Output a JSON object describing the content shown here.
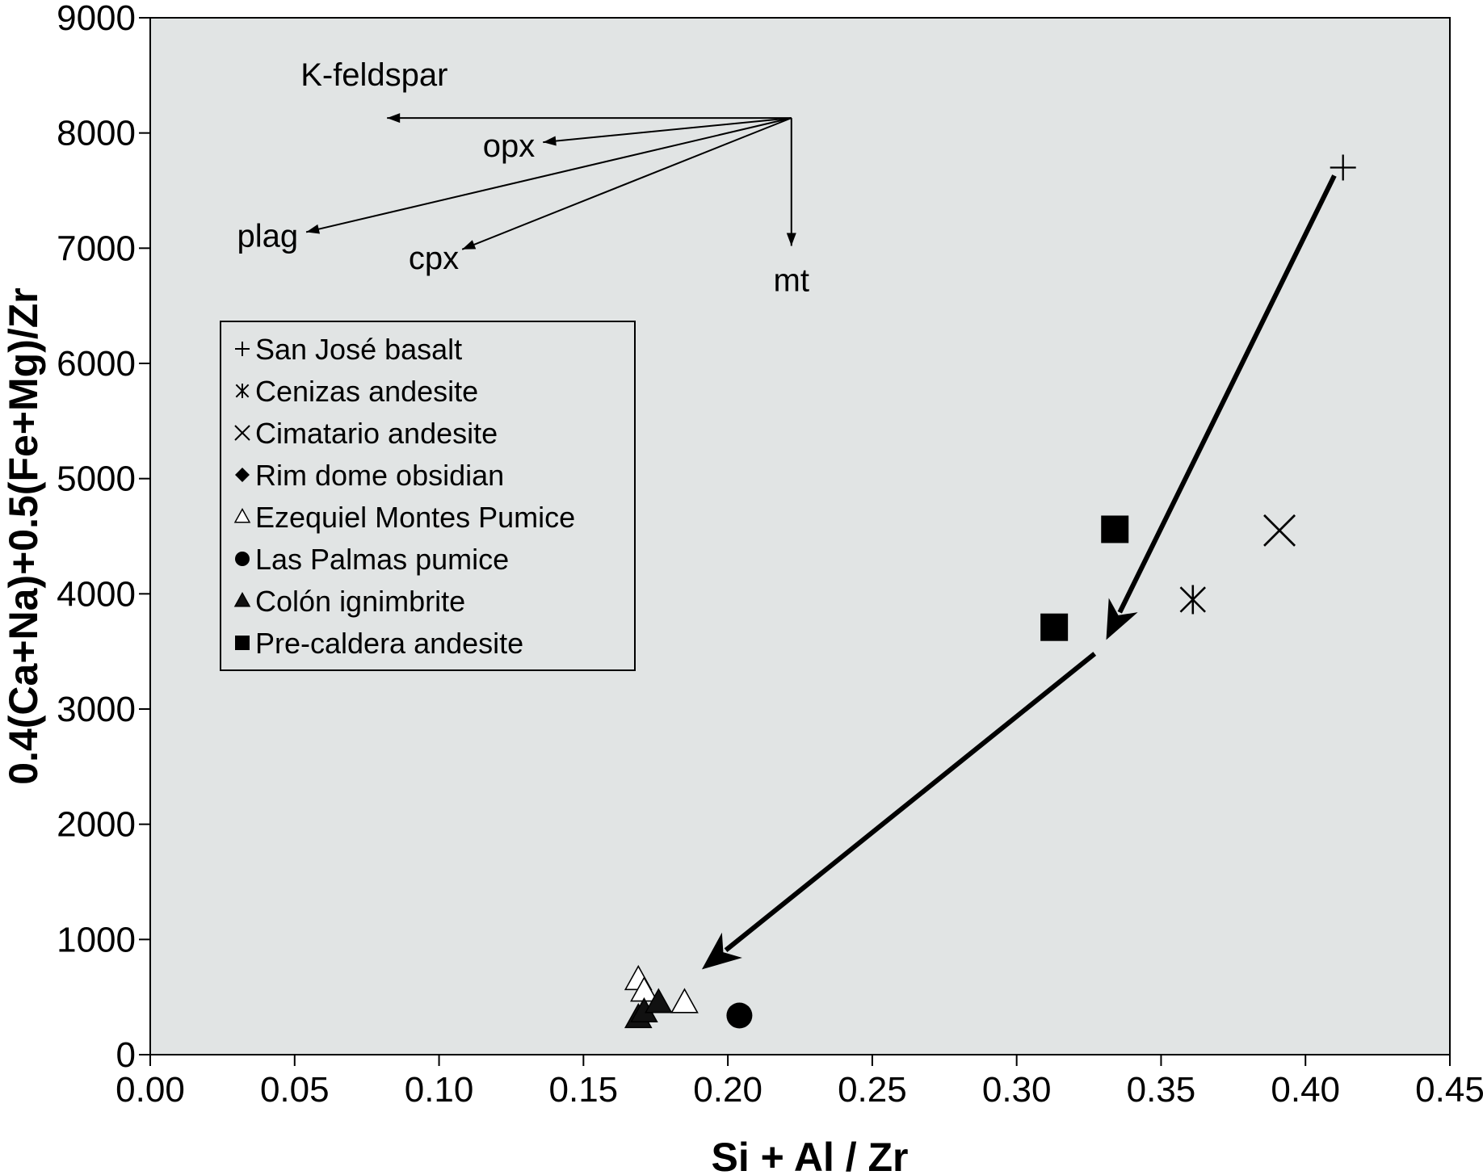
{
  "chart_data": {
    "type": "scatter",
    "xlabel": "Si + Al / Zr",
    "ylabel": "0.4(Ca+Na)+0.5(Fe+Mg)/Zr",
    "xlim": [
      0,
      0.45
    ],
    "ylim": [
      0,
      9000
    ],
    "xticks": [
      "0.00",
      "0.05",
      "0.10",
      "0.15",
      "0.20",
      "0.25",
      "0.30",
      "0.35",
      "0.40",
      "0.45"
    ],
    "yticks": [
      "0",
      "1000",
      "2000",
      "3000",
      "4000",
      "5000",
      "6000",
      "7000",
      "8000",
      "9000"
    ],
    "grid": false,
    "plot_background": "#e1e4e4",
    "legend_position": "upper-left",
    "series": [
      {
        "name": "San José basalt",
        "marker": "plus",
        "points": [
          [
            0.413,
            7700
          ]
        ]
      },
      {
        "name": "Cenizas andesite",
        "marker": "asterisk",
        "points": [
          [
            0.361,
            3950
          ]
        ]
      },
      {
        "name": "Cimatario andesite",
        "marker": "cross",
        "points": [
          [
            0.391,
            4550
          ]
        ]
      },
      {
        "name": "Rim dome obsidian",
        "marker": "diamond",
        "points": []
      },
      {
        "name": "Ezequiel Montes Pumice",
        "marker": "triangle-open",
        "points": [
          [
            0.169,
            650
          ],
          [
            0.171,
            550
          ],
          [
            0.185,
            450
          ]
        ]
      },
      {
        "name": "Las Palmas pumice",
        "marker": "circle",
        "points": [
          [
            0.204,
            340
          ]
        ]
      },
      {
        "name": "Colón ignimbrite",
        "marker": "triangle-filled",
        "points": [
          [
            0.169,
            320
          ],
          [
            0.171,
            370
          ],
          [
            0.176,
            450
          ]
        ]
      },
      {
        "name": "Pre-caldera andesite",
        "marker": "square",
        "points": [
          [
            0.313,
            3710
          ],
          [
            0.334,
            4560
          ]
        ]
      }
    ],
    "trend_arrows": [
      {
        "from": [
          0.41,
          7630
        ],
        "to": [
          0.331,
          3600
        ]
      },
      {
        "from": [
          0.327,
          3480
        ],
        "to": [
          0.191,
          740
        ]
      }
    ],
    "vector_origin": [
      0.222,
      8130
    ],
    "vectors": [
      {
        "label": "K-feldspar",
        "to": [
          0.082,
          8130
        ]
      },
      {
        "label": "opx",
        "to": [
          0.136,
          7920
        ]
      },
      {
        "label": "plag",
        "to": [
          0.054,
          7140
        ]
      },
      {
        "label": "cpx",
        "to": [
          0.108,
          6990
        ]
      },
      {
        "label": "mt",
        "to": [
          0.222,
          7020
        ]
      }
    ]
  }
}
